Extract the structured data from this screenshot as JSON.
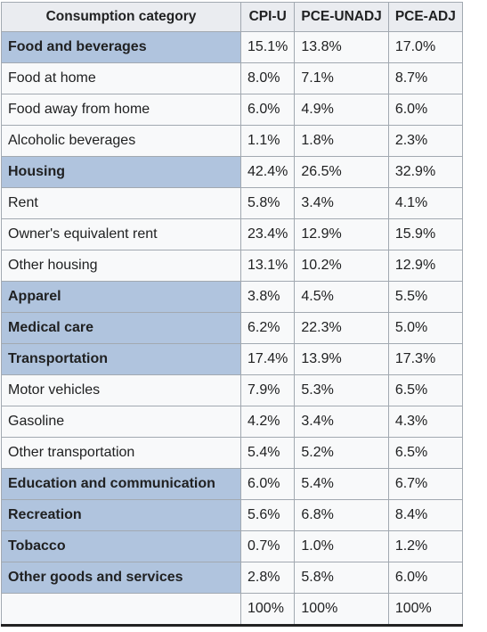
{
  "table": {
    "columns": [
      "Consumption category",
      "CPI-U",
      "PCE-UNADJ",
      "PCE-ADJ"
    ],
    "rows": [
      {
        "label": "Food and beverages",
        "major": true,
        "values": [
          "15.1%",
          "13.8%",
          "17.0%"
        ]
      },
      {
        "label": "Food at home",
        "major": false,
        "values": [
          "8.0%",
          "7.1%",
          "8.7%"
        ]
      },
      {
        "label": "Food away from home",
        "major": false,
        "values": [
          "6.0%",
          "4.9%",
          "6.0%"
        ]
      },
      {
        "label": "Alcoholic beverages",
        "major": false,
        "values": [
          "1.1%",
          "1.8%",
          "2.3%"
        ]
      },
      {
        "label": "Housing",
        "major": true,
        "values": [
          "42.4%",
          "26.5%",
          "32.9%"
        ]
      },
      {
        "label": "Rent",
        "major": false,
        "values": [
          "5.8%",
          "3.4%",
          "4.1%"
        ]
      },
      {
        "label": "Owner's equivalent rent",
        "major": false,
        "values": [
          "23.4%",
          "12.9%",
          "15.9%"
        ]
      },
      {
        "label": "Other housing",
        "major": false,
        "values": [
          "13.1%",
          "10.2%",
          "12.9%"
        ]
      },
      {
        "label": "Apparel",
        "major": true,
        "values": [
          "3.8%",
          "4.5%",
          "5.5%"
        ]
      },
      {
        "label": "Medical care",
        "major": true,
        "values": [
          "6.2%",
          "22.3%",
          "5.0%"
        ]
      },
      {
        "label": "Transportation",
        "major": true,
        "values": [
          "17.4%",
          "13.9%",
          "17.3%"
        ]
      },
      {
        "label": "Motor vehicles",
        "major": false,
        "values": [
          "7.9%",
          "5.3%",
          "6.5%"
        ]
      },
      {
        "label": "Gasoline",
        "major": false,
        "values": [
          "4.2%",
          "3.4%",
          "4.3%"
        ]
      },
      {
        "label": "Other transportation",
        "major": false,
        "values": [
          "5.4%",
          "5.2%",
          "6.5%"
        ]
      },
      {
        "label": "Education and communication",
        "major": true,
        "values": [
          "6.0%",
          "5.4%",
          "6.7%"
        ]
      },
      {
        "label": "Recreation",
        "major": true,
        "values": [
          "5.6%",
          "6.8%",
          "8.4%"
        ]
      },
      {
        "label": "Tobacco",
        "major": true,
        "values": [
          "0.7%",
          "1.0%",
          "1.2%"
        ]
      },
      {
        "label": "Other goods and services",
        "major": true,
        "values": [
          "2.8%",
          "5.8%",
          "6.0%"
        ]
      },
      {
        "values": [
          "100%",
          "100%",
          "100%"
        ]
      }
    ]
  }
}
